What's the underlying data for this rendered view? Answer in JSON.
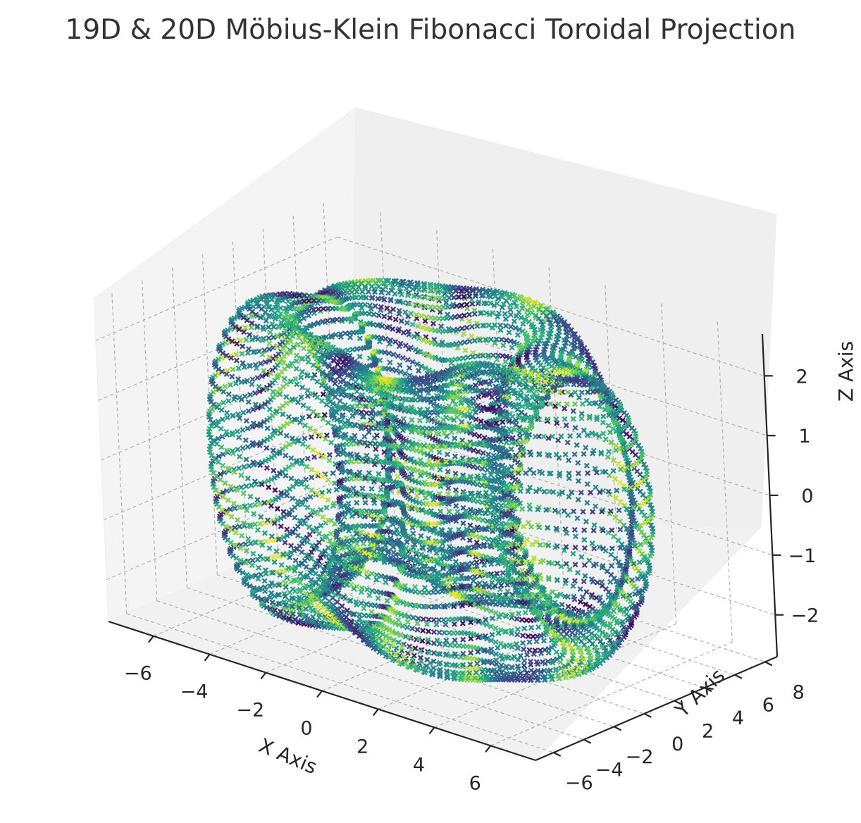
{
  "chart_data": {
    "type": "scatter",
    "projection": "3d",
    "title": "19D & 20D Möbius-Klein Fibonacci Toroidal Projection",
    "xlabel": "X Axis",
    "ylabel": "Y Axis",
    "zlabel": "Z Axis",
    "xlim": [
      -7.6,
      7.6
    ],
    "ylim": [
      -7.2,
      8.8
    ],
    "zlim": [
      -2.7,
      2.7
    ],
    "xticks": [
      -6,
      -4,
      -2,
      0,
      2,
      4,
      6
    ],
    "yticks": [
      -6,
      -4,
      -2,
      0,
      2,
      4,
      6,
      8
    ],
    "zticks": [
      -2,
      -1,
      0,
      1,
      2
    ],
    "xtick_labels": [
      "−6",
      "−4",
      "−2",
      "0",
      "2",
      "4",
      "6"
    ],
    "ytick_labels": [
      "−6",
      "−4",
      "−2",
      "0",
      "2",
      "4",
      "6",
      "8"
    ],
    "ztick_labels": [
      "−2",
      "−1",
      "0",
      "1",
      "2"
    ],
    "marker": "x",
    "colormap": "viridis",
    "grid": true,
    "surface": {
      "shape": "torus",
      "major_radius": 4.5,
      "minor_radius": 2.2,
      "lobes": 5,
      "lobe_amplitude": 0.6
    }
  }
}
